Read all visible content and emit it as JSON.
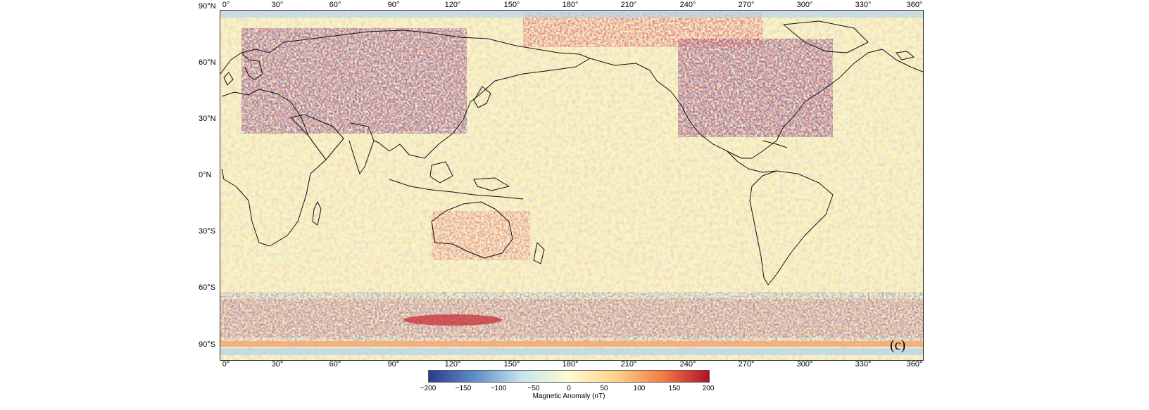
{
  "map": {
    "panel_label": "(c)",
    "latitude_labels": [
      "90°N",
      "60°N",
      "30°N",
      "0°N",
      "30°S",
      "60°S",
      "90°S"
    ],
    "longitude_labels": [
      "0°",
      "30°",
      "60°",
      "90°",
      "120°",
      "150°",
      "180°",
      "210°",
      "240°",
      "270°",
      "300°",
      "330°",
      "360°"
    ]
  },
  "colorbar": {
    "title": "Magnetic Anomaly (nT)",
    "ticks": [
      "−200",
      "−150",
      "−100",
      "−50",
      "0",
      "50",
      "100",
      "150",
      "200"
    ],
    "range": [
      -200,
      200
    ],
    "colors": [
      "#2b3a8f",
      "#5f8fc6",
      "#c8e4f0",
      "#fffbd0",
      "#fdd28a",
      "#f37c45",
      "#b3102a"
    ]
  },
  "colors": {
    "coastline": "#111111",
    "background_field": "#fbf3c2"
  }
}
